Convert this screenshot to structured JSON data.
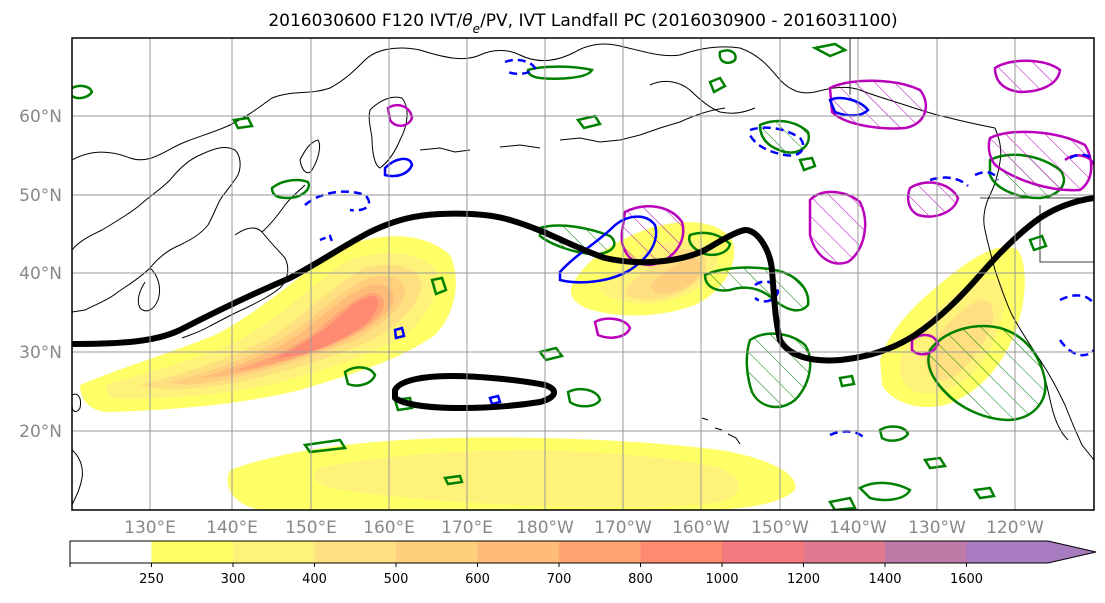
{
  "title_main": "2016030600 F120 IVT/",
  "title_theta": "θ",
  "title_sub": "e",
  "title_rest": "/PV, IVT Landfall PC (2016030900 - 2016031100)",
  "lat_labels": [
    "60°N",
    "50°N",
    "40°N",
    "30°N",
    "20°N"
  ],
  "lon_labels": [
    "130°E",
    "140°E",
    "150°E",
    "160°E",
    "170°E",
    "180°W",
    "170°W",
    "160°W",
    "150°W",
    "140°W",
    "130°W",
    "120°W"
  ],
  "colorbar": {
    "levels": [
      250,
      300,
      400,
      500,
      600,
      700,
      800,
      1000,
      1200,
      1400,
      1600
    ],
    "labels": [
      "250",
      "300",
      "400",
      "500",
      "600",
      "700",
      "800",
      "1000",
      "1200",
      "1400",
      "1600"
    ],
    "colors": [
      "#ffff66",
      "#fff27a",
      "#ffe080",
      "#ffcf7d",
      "#ffbb78",
      "#ffa575",
      "#ff8a72",
      "#f47a7f",
      "#df7a90",
      "#c07aa8",
      "#a87abf"
    ]
  },
  "colors": {
    "pv_contour": "#000000",
    "theta_e_positive": "#bb00bb",
    "theta_e_negative": "#0000ff",
    "landfall_pc": "#008000",
    "coast": "#000000",
    "grid": "#999999"
  }
}
